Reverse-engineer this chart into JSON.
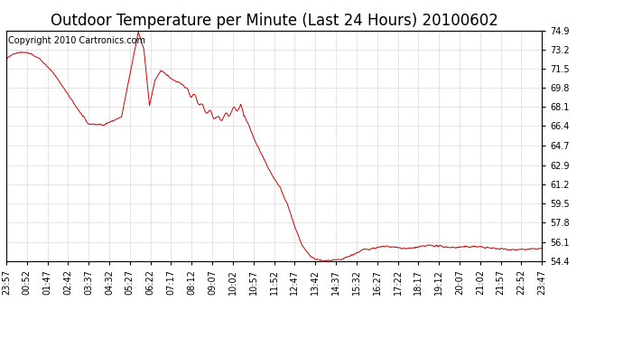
{
  "title": "Outdoor Temperature per Minute (Last 24 Hours) 20100602",
  "copyright": "Copyright 2010 Cartronics.com",
  "line_color": "#cc0000",
  "background_color": "#ffffff",
  "plot_background": "#ffffff",
  "grid_color": "#cccccc",
  "ylim": [
    54.4,
    74.9
  ],
  "yticks": [
    54.4,
    56.1,
    57.8,
    59.5,
    61.2,
    62.9,
    64.7,
    66.4,
    68.1,
    69.8,
    71.5,
    73.2,
    74.9
  ],
  "xtick_labels": [
    "23:57",
    "00:52",
    "01:47",
    "02:42",
    "03:37",
    "04:32",
    "05:27",
    "06:22",
    "07:17",
    "08:12",
    "09:07",
    "10:02",
    "10:57",
    "11:52",
    "12:47",
    "13:42",
    "14:37",
    "15:32",
    "16:27",
    "17:22",
    "18:17",
    "19:12",
    "20:07",
    "21:02",
    "21:57",
    "22:52",
    "23:47"
  ],
  "control_x": [
    0,
    15,
    40,
    60,
    90,
    130,
    180,
    220,
    260,
    310,
    355,
    370,
    385,
    400,
    415,
    430,
    450,
    470,
    490,
    510,
    530,
    550,
    570,
    590,
    610,
    630,
    650,
    670,
    695,
    715,
    735,
    755,
    775,
    795,
    820,
    850,
    900,
    960,
    1020,
    1080,
    1140,
    1200,
    1260,
    1320,
    1380,
    1440
  ],
  "control_y": [
    72.3,
    72.8,
    73.0,
    72.9,
    72.4,
    71.0,
    68.5,
    66.6,
    66.5,
    67.2,
    74.8,
    73.2,
    68.2,
    70.5,
    71.3,
    71.0,
    70.5,
    70.2,
    69.4,
    68.9,
    68.0,
    67.5,
    67.0,
    67.3,
    67.8,
    68.1,
    66.6,
    65.0,
    63.3,
    62.0,
    61.0,
    59.5,
    57.5,
    55.8,
    54.7,
    54.4,
    54.5,
    55.4,
    55.7,
    55.5,
    55.8,
    55.6,
    55.7,
    55.5,
    55.4,
    55.5
  ],
  "num_points": 1441,
  "title_fontsize": 12,
  "copyright_fontsize": 7,
  "tick_fontsize": 7
}
